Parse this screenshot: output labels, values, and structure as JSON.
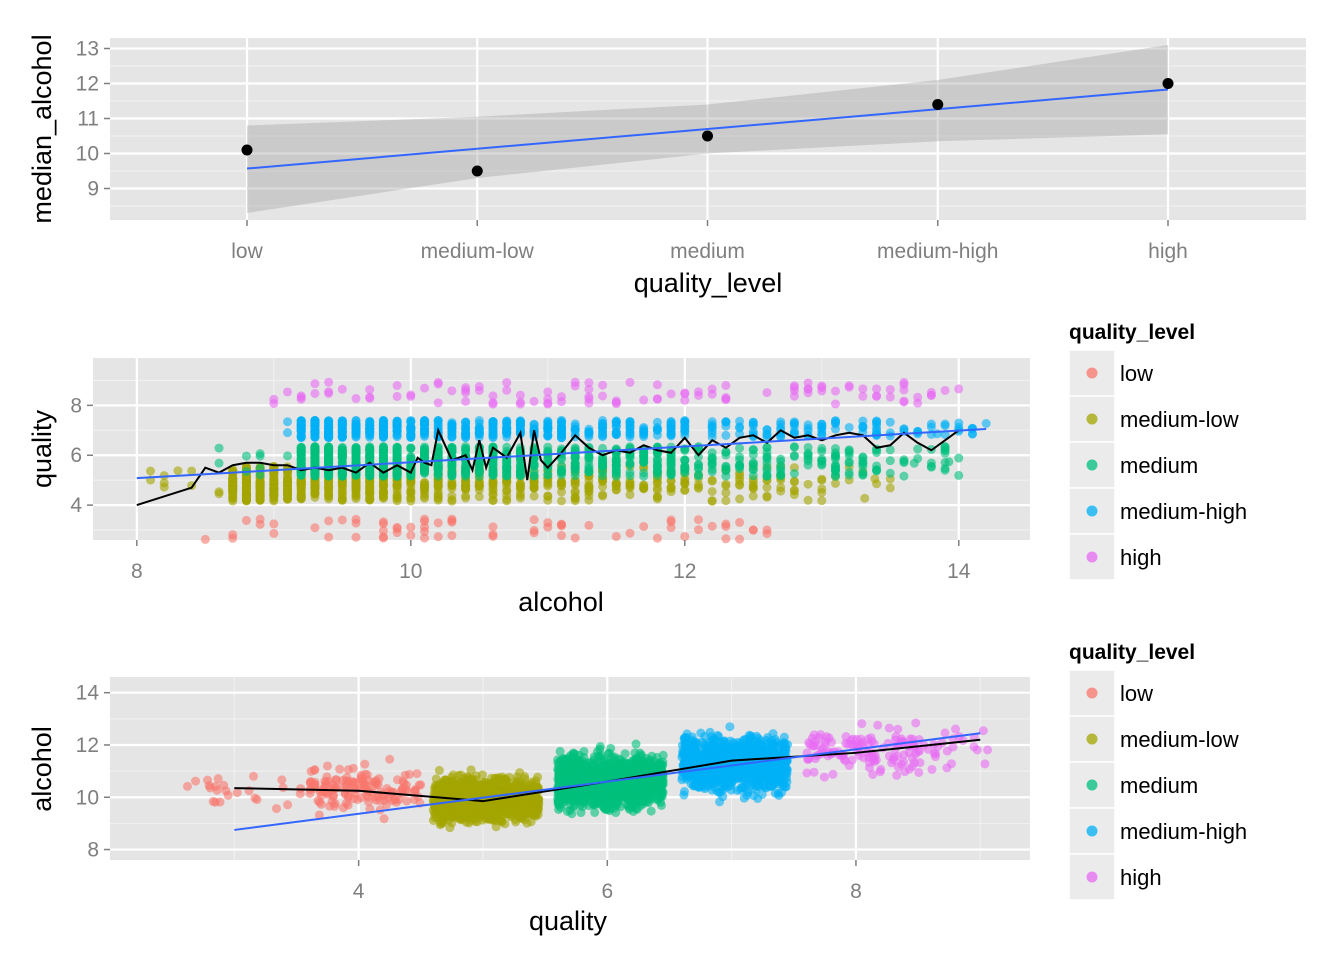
{
  "legend": {
    "title": "quality_level",
    "entries": [
      {
        "label": "low",
        "color": "#F8766D"
      },
      {
        "label": "medium-low",
        "color": "#A3A500"
      },
      {
        "label": "medium",
        "color": "#00BF7D"
      },
      {
        "label": "medium-high",
        "color": "#00B0F6"
      },
      {
        "label": "high",
        "color": "#E76BF3"
      }
    ]
  },
  "colors": {
    "panel_background": "#e5e5e5",
    "smooth_line": "#3366FF",
    "confidence_band": "#999999",
    "mean_line": "#000000"
  },
  "chart_data": [
    {
      "type": "scatter",
      "xlabel": "quality_level",
      "ylabel": "median_alcohol",
      "x_axis": "categorical",
      "categories": [
        "low",
        "medium-low",
        "medium",
        "medium-high",
        "high"
      ],
      "yticks": [
        9,
        10,
        11,
        12,
        13
      ],
      "ylim": [
        8.1,
        13.3
      ],
      "grid": true,
      "legend": false,
      "points": [
        10.1,
        9.5,
        10.5,
        11.4,
        12.0
      ],
      "linear_fit": {
        "color": "#3366FF",
        "from": 9.57,
        "to": 11.83
      },
      "confidence_band": {
        "lower": [
          8.3,
          9.3,
          10.0,
          10.35,
          10.55
        ],
        "upper": [
          10.8,
          11.05,
          11.4,
          12.1,
          13.1
        ]
      }
    },
    {
      "type": "scatter",
      "xlabel": "alcohol",
      "ylabel": "quality",
      "xticks": [
        8,
        10,
        12,
        14
      ],
      "yticks": [
        4,
        6,
        8
      ],
      "xlim": [
        7.68,
        14.52
      ],
      "ylim": [
        2.6,
        9.9
      ],
      "grid": true,
      "legend": "right",
      "color_by": "quality_level",
      "series": [
        {
          "name": "low",
          "quality": 3,
          "alcohol_range": [
            8.0,
            12.7
          ],
          "jitter": 0.45
        },
        {
          "name": "medium-low",
          "quality": 4.5,
          "alcohol_range": [
            8.0,
            13.5
          ],
          "jitter": 0.6
        },
        {
          "name": "medium",
          "quality": 5.75,
          "alcohol_range": [
            8.5,
            14.0
          ],
          "jitter": 0.6
        },
        {
          "name": "medium-high",
          "quality": 7.05,
          "alcohol_range": [
            8.5,
            14.2
          ],
          "jitter": 0.35
        },
        {
          "name": "high",
          "quality": 8.5,
          "alcohol_range": [
            8.5,
            14.0
          ],
          "jitter": 0.45
        }
      ],
      "linear_fit": {
        "color": "#3366FF",
        "x": [
          8.0,
          14.2
        ],
        "y": [
          5.08,
          7.05
        ]
      },
      "mean_line": {
        "color": "#000000",
        "x": [
          8.0,
          8.4,
          8.5,
          8.6,
          8.7,
          8.8,
          8.9,
          9.0,
          9.1,
          9.2,
          9.3,
          9.4,
          9.5,
          9.6,
          9.7,
          9.8,
          9.9,
          10.0,
          10.05,
          10.1,
          10.15,
          10.2,
          10.3,
          10.4,
          10.45,
          10.5,
          10.55,
          10.6,
          10.7,
          10.8,
          10.85,
          10.9,
          10.95,
          11.0,
          11.1,
          11.2,
          11.3,
          11.4,
          11.5,
          11.6,
          11.7,
          11.8,
          11.9,
          12.0,
          12.1,
          12.2,
          12.3,
          12.4,
          12.5,
          12.6,
          12.7,
          12.8,
          12.9,
          13.0,
          13.1,
          13.2,
          13.3,
          13.4,
          13.5,
          13.6,
          13.7,
          13.8,
          14.0
        ],
        "y": [
          4.0,
          4.7,
          5.5,
          5.3,
          5.6,
          5.7,
          5.7,
          5.6,
          5.6,
          5.4,
          5.5,
          5.4,
          5.5,
          5.3,
          5.7,
          5.3,
          5.6,
          5.3,
          5.9,
          5.7,
          5.6,
          7.0,
          5.8,
          6.0,
          5.4,
          6.6,
          5.5,
          6.3,
          5.9,
          6.9,
          5.0,
          7.0,
          5.8,
          5.5,
          6.1,
          6.8,
          6.3,
          6.0,
          6.2,
          6.1,
          6.4,
          6.2,
          6.1,
          6.7,
          6.0,
          6.6,
          6.3,
          6.7,
          6.8,
          6.5,
          7.0,
          6.7,
          6.8,
          6.6,
          6.8,
          6.9,
          6.8,
          6.3,
          6.4,
          6.9,
          6.5,
          6.2,
          7.0
        ]
      }
    },
    {
      "type": "scatter",
      "xlabel": "quality",
      "ylabel": "alcohol",
      "xticks": [
        4,
        6,
        8
      ],
      "yticks": [
        8,
        10,
        12,
        14
      ],
      "xlim": [
        2.0,
        9.4
      ],
      "ylim": [
        7.6,
        14.6
      ],
      "grid": true,
      "legend": "right",
      "color_by": "quality_level",
      "series": [
        {
          "name": "low",
          "quality_range": [
            2.6,
            4.5
          ],
          "alcohol_center": 10.3,
          "alcohol_spread": 1.1
        },
        {
          "name": "medium-low",
          "quality_range": [
            4.6,
            5.45
          ],
          "alcohol_center": 9.9,
          "alcohol_spread": 0.9
        },
        {
          "name": "medium",
          "quality_range": [
            5.6,
            6.45
          ],
          "alcohol_center": 10.6,
          "alcohol_spread": 1.1
        },
        {
          "name": "medium-high",
          "quality_range": [
            6.6,
            7.45
          ],
          "alcohol_center": 11.3,
          "alcohol_spread": 1.2
        },
        {
          "name": "high",
          "quality_range": [
            7.6,
            9.1
          ],
          "alcohol_center": 11.8,
          "alcohol_spread": 1.1
        }
      ],
      "linear_fit": {
        "color": "#3366FF",
        "x": [
          3.0,
          9.0
        ],
        "y": [
          8.75,
          12.45
        ]
      },
      "mean_line": {
        "color": "#000000",
        "x": [
          3,
          4,
          5,
          6,
          7,
          8,
          9
        ],
        "y": [
          10.35,
          10.25,
          9.85,
          10.6,
          11.4,
          11.7,
          12.2
        ]
      }
    }
  ]
}
